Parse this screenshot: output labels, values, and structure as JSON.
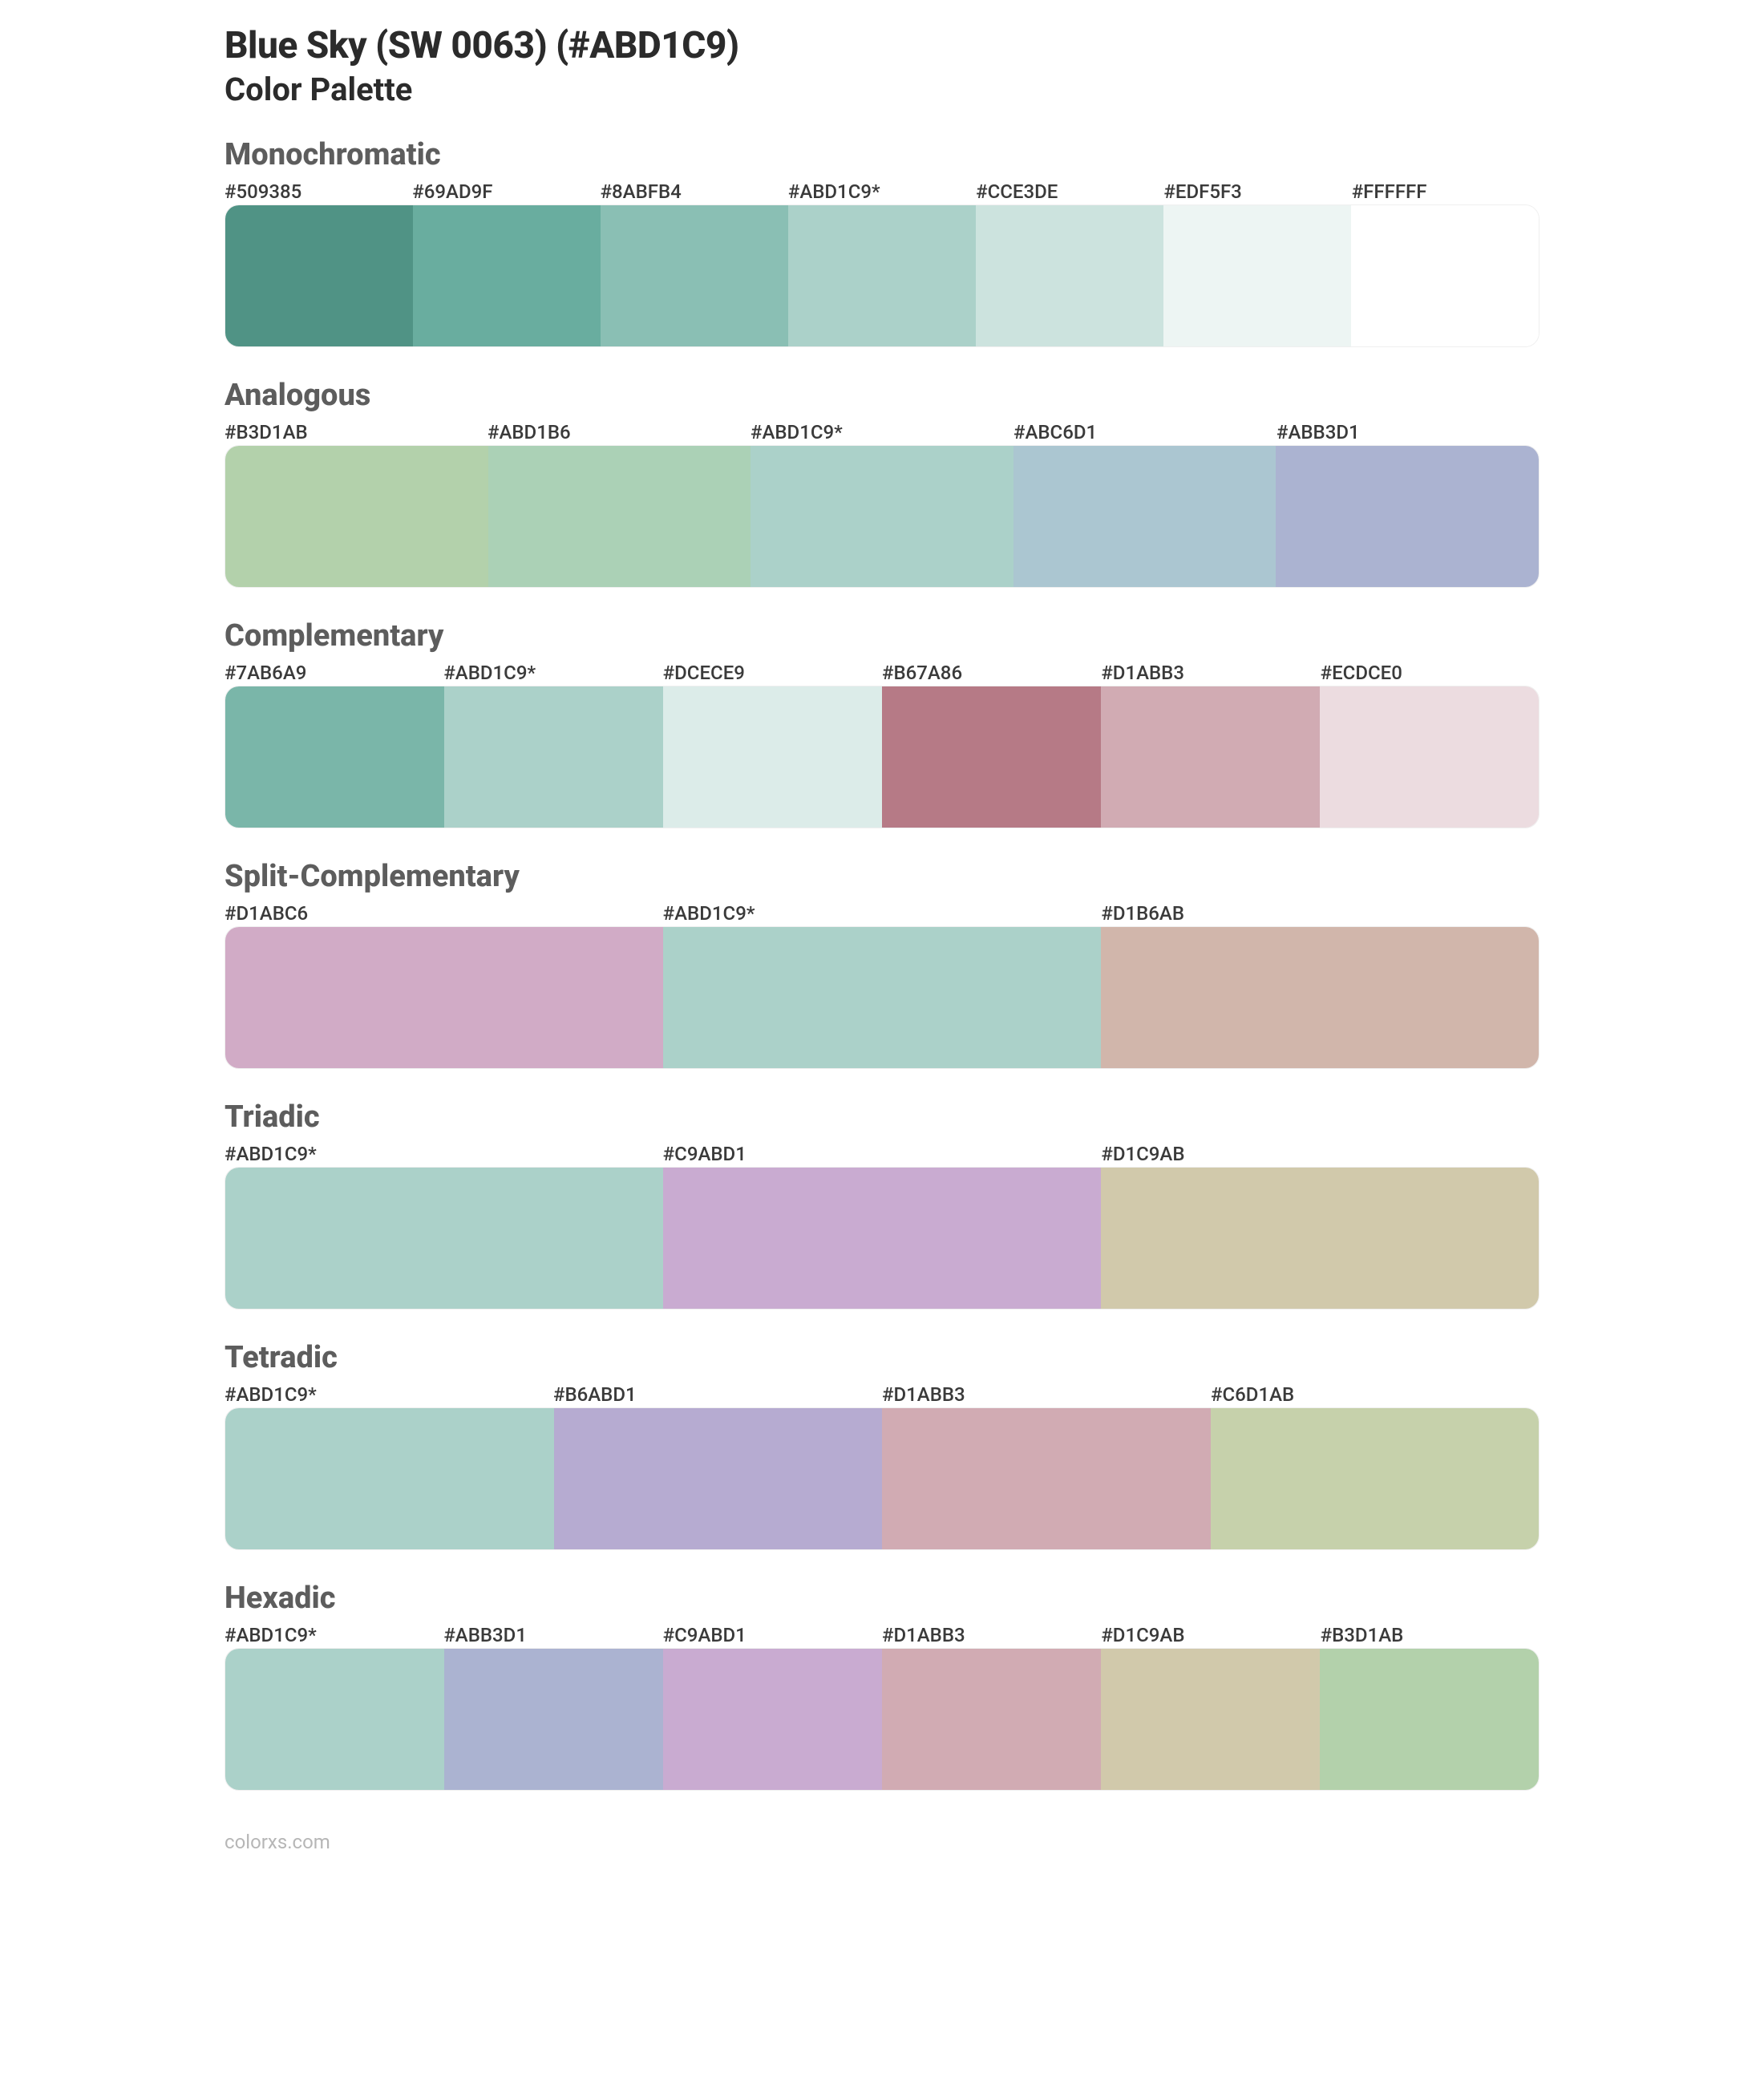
{
  "title": "Blue Sky (SW 0063) (#ABD1C9)",
  "subtitle": "Color Palette",
  "footer": "colorxs.com",
  "swatch_height": 178,
  "page_bg": "#ffffff",
  "title_color": "#2b2b2b",
  "section_title_color": "#5d5d5d",
  "label_color": "#3a3a3a",
  "sections": [
    {
      "name": "Monochromatic",
      "colors": [
        {
          "label": "#509385",
          "hex": "#509385"
        },
        {
          "label": "#69AD9F",
          "hex": "#69AD9F"
        },
        {
          "label": "#8ABFB4",
          "hex": "#8ABFB4"
        },
        {
          "label": "#ABD1C9*",
          "hex": "#ABD1C9"
        },
        {
          "label": "#CCE3DE",
          "hex": "#CCE3DE"
        },
        {
          "label": "#EDF5F3",
          "hex": "#EDF5F3"
        },
        {
          "label": "#FFFFFF",
          "hex": "#FFFFFF"
        }
      ]
    },
    {
      "name": "Analogous",
      "colors": [
        {
          "label": "#B3D1AB",
          "hex": "#B3D1AB"
        },
        {
          "label": "#ABD1B6",
          "hex": "#ABD1B6"
        },
        {
          "label": "#ABD1C9*",
          "hex": "#ABD1C9"
        },
        {
          "label": "#ABC6D1",
          "hex": "#ABC6D1"
        },
        {
          "label": "#ABB3D1",
          "hex": "#ABB3D1"
        }
      ]
    },
    {
      "name": "Complementary",
      "colors": [
        {
          "label": "#7AB6A9",
          "hex": "#7AB6A9"
        },
        {
          "label": "#ABD1C9*",
          "hex": "#ABD1C9"
        },
        {
          "label": "#DCECE9",
          "hex": "#DCECE9"
        },
        {
          "label": "#B67A86",
          "hex": "#B67A86"
        },
        {
          "label": "#D1ABB3",
          "hex": "#D1ABB3"
        },
        {
          "label": "#ECDCE0",
          "hex": "#ECDCE0"
        }
      ]
    },
    {
      "name": "Split-Complementary",
      "colors": [
        {
          "label": "#D1ABC6",
          "hex": "#D1ABC6"
        },
        {
          "label": "#ABD1C9*",
          "hex": "#ABD1C9"
        },
        {
          "label": "#D1B6AB",
          "hex": "#D1B6AB"
        }
      ]
    },
    {
      "name": "Triadic",
      "colors": [
        {
          "label": "#ABD1C9*",
          "hex": "#ABD1C9"
        },
        {
          "label": "#C9ABD1",
          "hex": "#C9ABD1"
        },
        {
          "label": "#D1C9AB",
          "hex": "#D1C9AB"
        }
      ]
    },
    {
      "name": "Tetradic",
      "colors": [
        {
          "label": "#ABD1C9*",
          "hex": "#ABD1C9"
        },
        {
          "label": "#B6ABD1",
          "hex": "#B6ABD1"
        },
        {
          "label": "#D1ABB3",
          "hex": "#D1ABB3"
        },
        {
          "label": "#C6D1AB",
          "hex": "#C6D1AB"
        }
      ]
    },
    {
      "name": "Hexadic",
      "colors": [
        {
          "label": "#ABD1C9*",
          "hex": "#ABD1C9"
        },
        {
          "label": "#ABB3D1",
          "hex": "#ABB3D1"
        },
        {
          "label": "#C9ABD1",
          "hex": "#C9ABD1"
        },
        {
          "label": "#D1ABB3",
          "hex": "#D1ABB3"
        },
        {
          "label": "#D1C9AB",
          "hex": "#D1C9AB"
        },
        {
          "label": "#B3D1AB",
          "hex": "#B3D1AB"
        }
      ]
    }
  ]
}
